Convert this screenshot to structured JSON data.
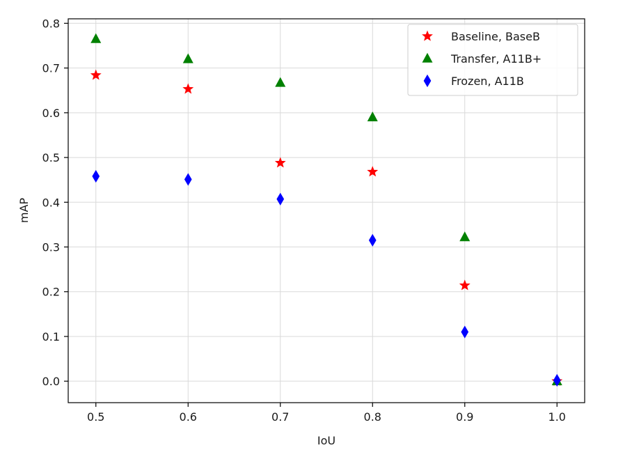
{
  "chart_data": {
    "type": "scatter",
    "xlabel": "IoU",
    "ylabel": "mAP",
    "xlim": [
      0.47,
      1.03
    ],
    "ylim": [
      -0.048,
      0.81
    ],
    "xticks": [
      0.5,
      0.6,
      0.7,
      0.8,
      0.9,
      1.0
    ],
    "xtick_labels": [
      "0.5",
      "0.6",
      "0.7",
      "0.8",
      "0.9",
      "1.0"
    ],
    "yticks": [
      0.0,
      0.1,
      0.2,
      0.3,
      0.4,
      0.5,
      0.6,
      0.7,
      0.8
    ],
    "ytick_labels": [
      "0.0",
      "0.1",
      "0.2",
      "0.3",
      "0.4",
      "0.5",
      "0.6",
      "0.7",
      "0.8"
    ],
    "grid": true,
    "legend_position": "top-right",
    "x": [
      0.5,
      0.6,
      0.7,
      0.8,
      0.9,
      1.0
    ],
    "series": [
      {
        "name": "Baseline, BaseB",
        "marker": "star",
        "color": "#ff0000",
        "values": [
          0.684,
          0.653,
          0.488,
          0.468,
          0.214,
          0.0
        ]
      },
      {
        "name": "Transfer, A11B+",
        "marker": "triangle",
        "color": "#008000",
        "values": [
          0.765,
          0.72,
          0.667,
          0.59,
          0.322,
          0.0
        ]
      },
      {
        "name": "Frozen, A11B",
        "marker": "diamond",
        "color": "#0000ff",
        "values": [
          0.458,
          0.451,
          0.407,
          0.315,
          0.11,
          0.002
        ]
      }
    ]
  }
}
